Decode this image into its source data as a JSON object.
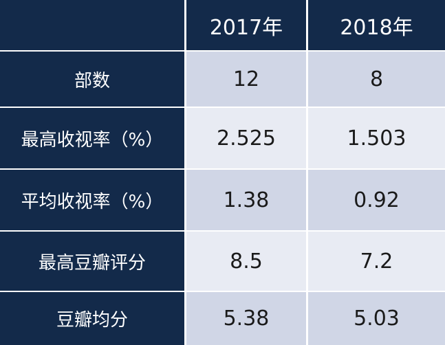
{
  "table": {
    "header": [
      "",
      "2017年",
      "2018年"
    ],
    "rows": [
      [
        "部数",
        "12",
        "8"
      ],
      [
        "最高收视率（%）",
        "2.525",
        "1.503"
      ],
      [
        "平均收视率（%）",
        "1.38",
        "0.92"
      ],
      [
        "最高豆瓣评分",
        "8.5",
        "7.2"
      ],
      [
        "豆瓣均分",
        "5.38",
        "5.03"
      ]
    ]
  }
}
